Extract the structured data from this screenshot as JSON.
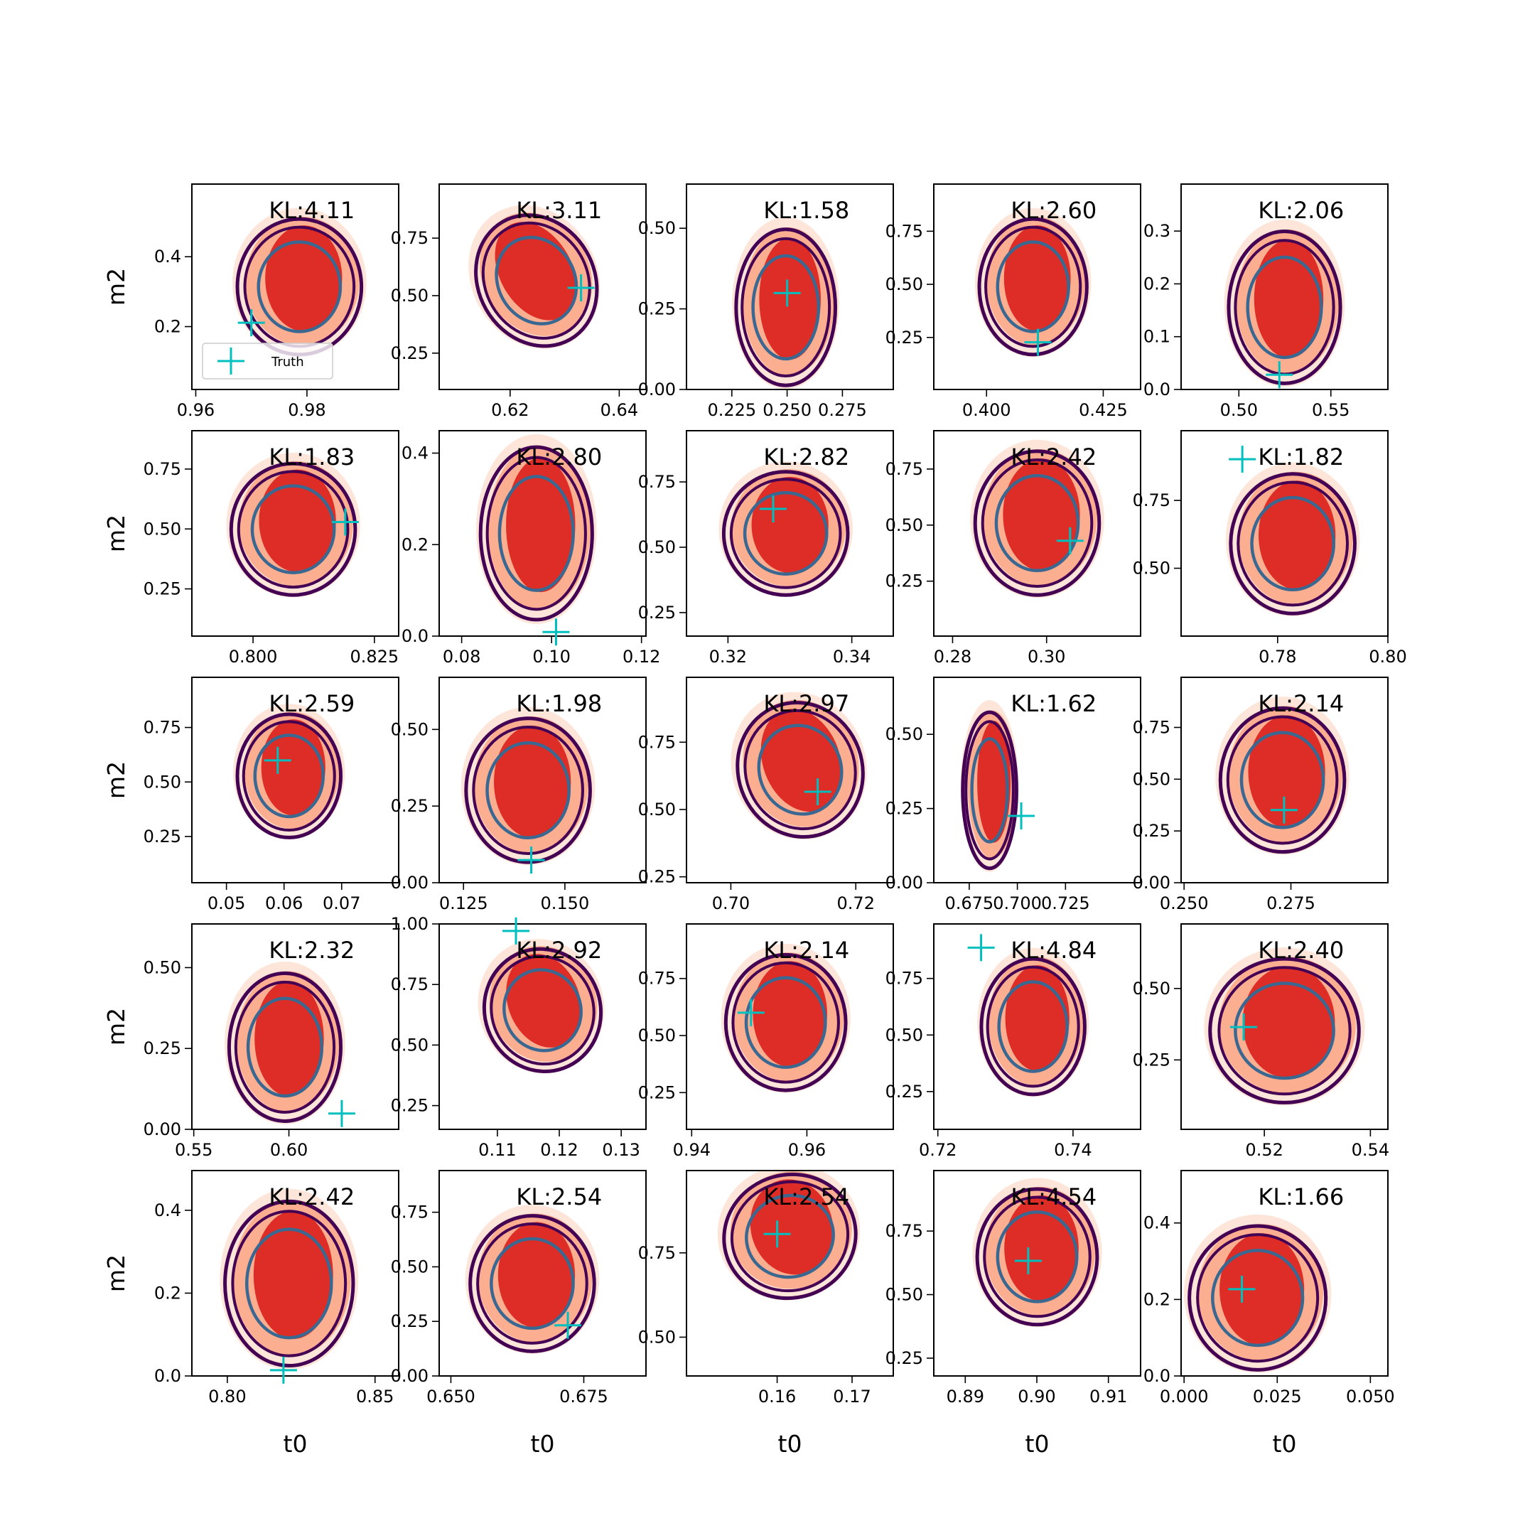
{
  "chart_data": [
    {
      "type": "scatter",
      "title": "KL:4.11",
      "xlim": [
        0.9593,
        0.9965
      ],
      "xticks": [
        0.96,
        0.98
      ],
      "ylim": [
        0.02,
        0.608
      ],
      "yticks": [
        0.2,
        0.4
      ],
      "ylabel": "m2",
      "legend": "lower left",
      "series": [
        {
          "name": "Truth",
          "color": "#00bfbf",
          "x": [
            0.97
          ],
          "values": [
            0.211
          ]
        }
      ]
    },
    {
      "type": "scatter",
      "title": "KL:3.11",
      "xlim": [
        0.607,
        0.6449
      ],
      "xticks": [
        0.62,
        0.64
      ],
      "ylim": [
        0.092,
        0.985
      ],
      "yticks": [
        0.25,
        {
          "value": 0.5,
          "label": "0.50"
        },
        0.75
      ],
      "series": [
        {
          "color": "#00bfbf",
          "x": [
            0.633
          ],
          "values": [
            0.534
          ]
        }
      ]
    },
    {
      "type": "scatter",
      "title": "KL:1.58",
      "xlim": [
        0.2045,
        0.298
      ],
      "xticks": [
        0.225,
        {
          "value": 0.25,
          "label": "0.250"
        },
        0.275
      ],
      "ylim": [
        0,
        0.637
      ],
      "yticks": [
        {
          "value": 0,
          "label": "0.00"
        },
        0.25,
        {
          "value": 0.5,
          "label": "0.50"
        }
      ],
      "series": [
        {
          "color": "#00bfbf",
          "x": [
            0.25
          ],
          "values": [
            0.299
          ]
        }
      ]
    },
    {
      "type": "scatter",
      "title": "KL:2.60",
      "xlim": [
        0.3887,
        0.433
      ],
      "xticks": [
        {
          "value": 0.4,
          "label": "0.400"
        },
        0.425
      ],
      "ylim": [
        0.005,
        0.972
      ],
      "yticks": [
        0.25,
        {
          "value": 0.5,
          "label": "0.50"
        },
        0.75
      ],
      "series": [
        {
          "color": "#00bfbf",
          "x": [
            0.411
          ],
          "values": [
            0.227
          ]
        }
      ]
    },
    {
      "type": "scatter",
      "title": "KL:2.06",
      "xlim": [
        0.4686,
        0.581
      ],
      "xticks": [
        {
          "value": 0.5,
          "label": "0.50"
        },
        0.55
      ],
      "ylim": [
        0,
        0.389
      ],
      "yticks": [
        {
          "value": 0,
          "label": "0.0"
        },
        0.1,
        0.2,
        0.3
      ],
      "series": [
        {
          "color": "#00bfbf",
          "x": [
            0.522
          ],
          "values": [
            0.028
          ]
        }
      ]
    },
    {
      "type": "scatter",
      "title": "KL:1.83",
      "xlim": [
        0.7874,
        0.83
      ],
      "xticks": [
        {
          "value": 0.8,
          "label": "0.800"
        },
        0.825
      ],
      "ylim": [
        0.053,
        0.91
      ],
      "yticks": [
        0.25,
        {
          "value": 0.5,
          "label": "0.50"
        },
        0.75
      ],
      "ylabel": "m2",
      "series": [
        {
          "color": "#00bfbf",
          "x": [
            0.819
          ],
          "values": [
            0.529
          ]
        }
      ]
    },
    {
      "type": "scatter",
      "title": "KL:2.80",
      "xlim": [
        0.075,
        0.121
      ],
      "xticks": [
        0.08,
        {
          "value": 0.1,
          "label": "0.10"
        },
        0.12
      ],
      "ylim": [
        0,
        0.449
      ],
      "yticks": [
        {
          "value": 0,
          "label": "0.0"
        },
        0.2,
        0.4
      ],
      "series": [
        {
          "color": "#00bfbf",
          "x": [
            0.101
          ],
          "values": [
            0.009
          ]
        }
      ]
    },
    {
      "type": "scatter",
      "title": "KL:2.82",
      "xlim": [
        0.3133,
        0.3467
      ],
      "xticks": [
        0.32,
        0.34
      ],
      "ylim": [
        0.16,
        0.946
      ],
      "yticks": [
        0.25,
        {
          "value": 0.5,
          "label": "0.50"
        },
        0.75
      ],
      "series": [
        {
          "color": "#00bfbf",
          "x": [
            0.3273
          ],
          "values": [
            0.647
          ]
        }
      ]
    },
    {
      "type": "scatter",
      "title": "KL:2.42",
      "xlim": [
        0.276,
        0.32
      ],
      "xticks": [
        0.28,
        {
          "value": 0.3,
          "label": "0.30"
        }
      ],
      "ylim": [
        0.005,
        0.921
      ],
      "yticks": [
        0.25,
        {
          "value": 0.5,
          "label": "0.50"
        },
        0.75
      ],
      "series": [
        {
          "color": "#00bfbf",
          "x": [
            0.305
          ],
          "values": [
            0.43
          ]
        }
      ]
    },
    {
      "type": "scatter",
      "title": "KL:1.82",
      "xlim": [
        0.7625,
        0.8
      ],
      "xticks": [
        0.78,
        {
          "value": 0.8,
          "label": "0.80"
        }
      ],
      "ylim": [
        0.25,
        1.007
      ],
      "yticks": [
        {
          "value": 0.5,
          "label": "0.50"
        },
        0.75
      ],
      "series": [
        {
          "color": "#00bfbf",
          "x": [
            0.7736
          ],
          "values": [
            0.902
          ]
        }
      ]
    },
    {
      "type": "scatter",
      "title": "KL:2.59",
      "xlim": [
        0.044,
        0.0799
      ],
      "xticks": [
        0.05,
        0.06,
        0.07
      ],
      "ylim": [
        0.038,
        0.98
      ],
      "yticks": [
        0.25,
        {
          "value": 0.5,
          "label": "0.50"
        },
        0.75
      ],
      "ylabel": "m2",
      "series": [
        {
          "color": "#00bfbf",
          "x": [
            0.0589
          ],
          "values": [
            0.599
          ]
        }
      ]
    },
    {
      "type": "scatter",
      "title": "KL:1.98",
      "xlim": [
        0.119,
        0.17
      ],
      "xticks": [
        0.125,
        {
          "value": 0.15,
          "label": "0.150"
        }
      ],
      "ylim": [
        0,
        0.67
      ],
      "yticks": [
        {
          "value": 0,
          "label": "0.00"
        },
        0.25,
        {
          "value": 0.5,
          "label": "0.50"
        }
      ],
      "series": [
        {
          "color": "#00bfbf",
          "x": [
            0.1417
          ],
          "values": [
            0.074
          ]
        }
      ]
    },
    {
      "type": "scatter",
      "title": "KL:2.97",
      "xlim": [
        0.6929,
        0.726
      ],
      "xticks": [
        {
          "value": 0.7,
          "label": "0.70"
        },
        0.72
      ],
      "ylim": [
        0.228,
        0.991
      ],
      "yticks": [
        0.25,
        {
          "value": 0.5,
          "label": "0.50"
        },
        0.75
      ],
      "series": [
        {
          "color": "#00bfbf",
          "x": [
            0.7139
          ],
          "values": [
            0.566
          ]
        }
      ]
    },
    {
      "type": "scatter",
      "title": "KL:1.62",
      "xlim": [
        0.6566,
        0.764
      ],
      "xticks": [
        0.675,
        {
          "value": 0.7,
          "label": "0.700"
        },
        0.725
      ],
      "ylim": [
        0,
        0.692
      ],
      "yticks": [
        {
          "value": 0,
          "label": "0.00"
        },
        0.25,
        {
          "value": 0.5,
          "label": "0.50"
        }
      ],
      "series": [
        {
          "color": "#00bfbf",
          "x": [
            0.702
          ],
          "values": [
            0.225
          ]
        }
      ]
    },
    {
      "type": "scatter",
      "title": "KL:2.14",
      "xlim": [
        0.2493,
        0.2977
      ],
      "xticks": [
        {
          "value": 0.25,
          "label": "0.250"
        },
        0.275
      ],
      "ylim": [
        0,
        0.992
      ],
      "yticks": [
        {
          "value": 0,
          "label": "0.00"
        },
        0.25,
        {
          "value": 0.5,
          "label": "0.50"
        },
        0.75
      ],
      "series": [
        {
          "color": "#00bfbf",
          "x": [
            0.2734
          ],
          "values": [
            0.351
          ]
        }
      ]
    },
    {
      "type": "scatter",
      "title": "KL:2.32",
      "xlim": [
        0.549,
        0.6577
      ],
      "xticks": [
        0.55,
        {
          "value": 0.6,
          "label": "0.60"
        }
      ],
      "ylim": [
        0,
        0.635
      ],
      "yticks": [
        {
          "value": 0,
          "label": "0.00"
        },
        0.25,
        {
          "value": 0.5,
          "label": "0.50"
        }
      ],
      "ylabel": "m2",
      "series": [
        {
          "color": "#00bfbf",
          "x": [
            0.6278
          ],
          "values": [
            0.049
          ]
        }
      ]
    },
    {
      "type": "scatter",
      "title": "KL:2.92",
      "xlim": [
        0.1006,
        0.134
      ],
      "xticks": [
        0.11,
        0.12,
        0.13
      ],
      "ylim": [
        0.152,
        1.0
      ],
      "yticks": [
        0.25,
        {
          "value": 0.5,
          "label": "0.50"
        },
        0.75,
        {
          "value": 1,
          "label": "1.00"
        }
      ],
      "series": [
        {
          "color": "#00bfbf",
          "x": [
            0.113
          ],
          "values": [
            0.971
          ]
        }
      ]
    },
    {
      "type": "scatter",
      "title": "KL:2.14",
      "xlim": [
        0.9391,
        0.975
      ],
      "xticks": [
        0.94,
        0.96
      ],
      "ylim": [
        0.089,
        0.989
      ],
      "yticks": [
        0.25,
        {
          "value": 0.5,
          "label": "0.50"
        },
        0.75
      ],
      "series": [
        {
          "color": "#00bfbf",
          "x": [
            0.9503
          ],
          "values": [
            0.6
          ]
        }
      ]
    },
    {
      "type": "scatter",
      "title": "KL:4.84",
      "xlim": [
        0.7194,
        0.75
      ],
      "xticks": [
        0.72,
        0.74
      ],
      "ylim": [
        0.083,
        0.991
      ],
      "yticks": [
        0.25,
        {
          "value": 0.5,
          "label": "0.50"
        },
        0.75
      ],
      "series": [
        {
          "color": "#00bfbf",
          "x": [
            0.7264
          ],
          "values": [
            0.886
          ]
        }
      ]
    },
    {
      "type": "scatter",
      "title": "KL:2.40",
      "xlim": [
        0.5043,
        0.5433
      ],
      "xticks": [
        0.52,
        0.54
      ],
      "ylim": [
        0.007,
        0.726
      ],
      "yticks": [
        0.25,
        {
          "value": 0.5,
          "label": "0.50"
        }
      ],
      "series": [
        {
          "color": "#00bfbf",
          "x": [
            0.5161
          ],
          "values": [
            0.365
          ]
        }
      ]
    },
    {
      "type": "scatter",
      "title": "KL:2.42",
      "xlim": [
        0.788,
        0.858
      ],
      "xticks": [
        {
          "value": 0.8,
          "label": "0.80"
        },
        0.85
      ],
      "ylim": [
        0,
        0.496
      ],
      "yticks": [
        {
          "value": 0,
          "label": "0.0"
        },
        0.2,
        0.4
      ],
      "xlabel": "t0",
      "ylabel": "m2",
      "series": [
        {
          "color": "#00bfbf",
          "x": [
            0.819
          ],
          "values": [
            0.014
          ]
        }
      ]
    },
    {
      "type": "scatter",
      "title": "KL:2.54",
      "xlim": [
        0.6478,
        0.6867
      ],
      "xticks": [
        {
          "value": 0.65,
          "label": "0.650"
        },
        0.675
      ],
      "ylim": [
        0,
        0.941
      ],
      "yticks": [
        {
          "value": 0,
          "label": "0.00"
        },
        0.25,
        {
          "value": 0.5,
          "label": "0.50"
        },
        0.75
      ],
      "xlabel": "t0",
      "series": [
        {
          "color": "#00bfbf",
          "x": [
            0.672
          ],
          "values": [
            0.232
          ]
        }
      ]
    },
    {
      "type": "scatter",
      "title": "KL:2.54",
      "xlim": [
        0.1479,
        0.1755
      ],
      "xticks": [
        0.16,
        0.17
      ],
      "ylim": [
        0.385,
        0.994
      ],
      "yticks": [
        {
          "value": 0.5,
          "label": "0.50"
        },
        0.75
      ],
      "xlabel": "t0",
      "series": [
        {
          "color": "#00bfbf",
          "x": [
            0.16
          ],
          "values": [
            0.806
          ]
        }
      ]
    },
    {
      "type": "scatter",
      "title": "KL:4.54",
      "xlim": [
        0.8856,
        0.9145
      ],
      "xticks": [
        0.89,
        {
          "value": 0.9,
          "label": "0.90"
        },
        0.91
      ],
      "ylim": [
        0.18,
        0.988
      ],
      "yticks": [
        0.25,
        {
          "value": 0.5,
          "label": "0.50"
        },
        0.75
      ],
      "xlabel": "t0",
      "series": [
        {
          "color": "#00bfbf",
          "x": [
            0.8988
          ],
          "values": [
            0.633
          ]
        }
      ]
    },
    {
      "type": "scatter",
      "title": "KL:1.66",
      "xlim": [
        -0.0008,
        0.0547
      ],
      "xticks": [
        {
          "value": 0,
          "label": "0.000"
        },
        0.025,
        {
          "value": 0.05,
          "label": "0.050"
        }
      ],
      "ylim": [
        0,
        0.537
      ],
      "yticks": [
        {
          "value": 0,
          "label": "0.0"
        },
        0.2,
        0.4
      ],
      "xlabel": "t0",
      "series": [
        {
          "color": "#00bfbf",
          "x": [
            0.0155
          ],
          "values": [
            0.227
          ]
        }
      ]
    }
  ]
}
